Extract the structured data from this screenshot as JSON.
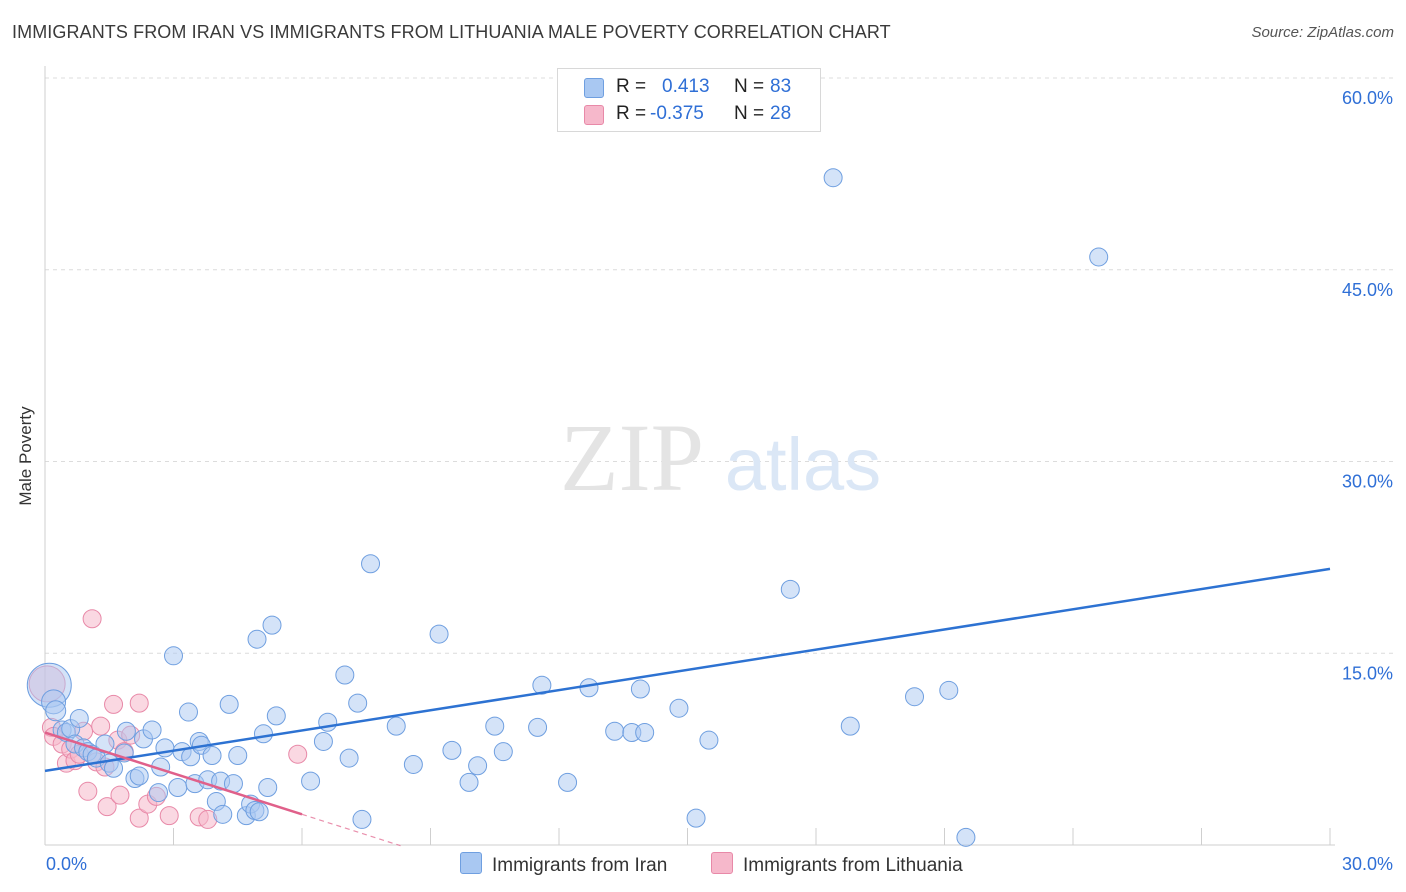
{
  "title": "IMMIGRANTS FROM IRAN VS IMMIGRANTS FROM LITHUANIA MALE POVERTY CORRELATION CHART",
  "source": "Source: ZipAtlas.com",
  "watermark": {
    "zip": "ZIP",
    "atlas": "atlas"
  },
  "legend": {
    "rows": [
      {
        "r_label": "R =",
        "r_value": "0.413",
        "n_label": "N =",
        "n_value": "83"
      },
      {
        "r_label": "R =",
        "r_value": "-0.375",
        "n_label": "N =",
        "n_value": "28"
      }
    ]
  },
  "bottom_legend": [
    "Immigrants from Iran",
    "Immigrants from Lithuania"
  ],
  "colors": {
    "iran_fill": "#a9c8f2",
    "iran_stroke": "#6f9fe0",
    "iran_line": "#2d72d2",
    "lith_fill": "#f6b8cb",
    "lith_stroke": "#e889a8",
    "lith_line": "#e0608a",
    "axis_label": "#2f6fd6",
    "grid": "#dcdcdc"
  },
  "chart_data": {
    "type": "scatter",
    "title": "IMMIGRANTS FROM IRAN VS IMMIGRANTS FROM LITHUANIA MALE POVERTY CORRELATION CHART",
    "xlabel": "",
    "ylabel": "Male Poverty",
    "xlim": [
      0,
      30
    ],
    "ylim": [
      0,
      60
    ],
    "x_tick_labels": [
      "0.0%",
      "30.0%"
    ],
    "y_ticks": [
      15,
      30,
      45,
      60
    ],
    "y_tick_labels": [
      "15.0%",
      "30.0%",
      "45.0%",
      "60.0%"
    ],
    "grid": true,
    "series": [
      {
        "name": "Immigrants from Iran",
        "R": 0.413,
        "N": 83,
        "trend": {
          "x0": 0,
          "y0": 5.8,
          "x1": 30,
          "y1": 21.6,
          "dashed_to": 30
        },
        "points": [
          [
            0.1,
            12.5,
            22
          ],
          [
            0.2,
            11.2,
            12
          ],
          [
            0.25,
            10.5,
            10
          ],
          [
            0.4,
            9.0,
            9
          ],
          [
            0.5,
            8.8,
            9
          ],
          [
            0.6,
            9.1,
            9
          ],
          [
            0.7,
            7.9,
            9
          ],
          [
            0.8,
            9.9,
            9
          ],
          [
            0.9,
            7.6,
            9
          ],
          [
            1.0,
            7.3,
            9
          ],
          [
            1.1,
            7.1,
            9
          ],
          [
            1.2,
            6.8,
            9
          ],
          [
            1.4,
            7.9,
            9
          ],
          [
            1.5,
            6.4,
            9
          ],
          [
            1.6,
            6.0,
            9
          ],
          [
            1.85,
            7.2,
            9
          ],
          [
            1.9,
            8.9,
            9
          ],
          [
            2.1,
            5.2,
            9
          ],
          [
            2.2,
            5.4,
            9
          ],
          [
            2.3,
            8.3,
            9
          ],
          [
            2.5,
            9.0,
            9
          ],
          [
            2.65,
            4.1,
            9
          ],
          [
            2.7,
            6.1,
            9
          ],
          [
            2.8,
            7.6,
            9
          ],
          [
            3.0,
            14.8,
            9
          ],
          [
            3.1,
            4.5,
            9
          ],
          [
            3.2,
            7.3,
            9
          ],
          [
            3.35,
            10.4,
            9
          ],
          [
            3.4,
            6.9,
            9
          ],
          [
            3.5,
            4.8,
            9
          ],
          [
            3.6,
            8.1,
            9
          ],
          [
            3.65,
            7.8,
            9
          ],
          [
            3.8,
            5.1,
            9
          ],
          [
            3.9,
            7.0,
            9
          ],
          [
            4.0,
            3.4,
            9
          ],
          [
            4.1,
            5.0,
            9
          ],
          [
            4.15,
            2.4,
            9
          ],
          [
            4.3,
            11.0,
            9
          ],
          [
            4.4,
            4.8,
            9
          ],
          [
            4.5,
            7.0,
            9
          ],
          [
            4.7,
            2.3,
            9
          ],
          [
            4.8,
            3.2,
            9
          ],
          [
            4.9,
            2.7,
            9
          ],
          [
            4.95,
            16.1,
            9
          ],
          [
            5.0,
            2.6,
            9
          ],
          [
            5.1,
            8.7,
            9
          ],
          [
            5.2,
            4.5,
            9
          ],
          [
            5.3,
            17.2,
            9
          ],
          [
            5.4,
            10.1,
            9
          ],
          [
            6.2,
            5.0,
            9
          ],
          [
            6.5,
            8.1,
            9
          ],
          [
            6.6,
            9.6,
            9
          ],
          [
            7.0,
            13.3,
            9
          ],
          [
            7.1,
            6.8,
            9
          ],
          [
            7.3,
            11.1,
            9
          ],
          [
            7.4,
            2.0,
            9
          ],
          [
            7.6,
            22.0,
            9
          ],
          [
            8.2,
            9.3,
            9
          ],
          [
            8.6,
            6.3,
            9
          ],
          [
            9.2,
            16.5,
            9
          ],
          [
            9.5,
            7.4,
            9
          ],
          [
            9.9,
            4.9,
            9
          ],
          [
            10.1,
            6.2,
            9
          ],
          [
            10.5,
            9.3,
            9
          ],
          [
            10.7,
            7.3,
            9
          ],
          [
            11.5,
            9.2,
            9
          ],
          [
            11.6,
            12.5,
            9
          ],
          [
            12.2,
            4.9,
            9
          ],
          [
            12.7,
            12.3,
            9
          ],
          [
            13.3,
            8.9,
            9
          ],
          [
            13.7,
            8.8,
            9
          ],
          [
            13.9,
            12.2,
            9
          ],
          [
            14.8,
            10.7,
            9
          ],
          [
            15.2,
            2.1,
            9
          ],
          [
            15.5,
            8.2,
            9
          ],
          [
            17.4,
            20.0,
            9
          ],
          [
            18.4,
            52.2,
            9
          ],
          [
            18.8,
            9.3,
            9
          ],
          [
            20.3,
            11.6,
            9
          ],
          [
            21.1,
            12.1,
            9
          ],
          [
            21.5,
            0.6,
            9
          ],
          [
            24.6,
            46.0,
            9
          ],
          [
            14.0,
            8.8,
            9
          ]
        ]
      },
      {
        "name": "Immigrants from Lithuania",
        "R": -0.375,
        "N": 28,
        "trend": {
          "x0": 0,
          "y0": 8.8,
          "x1": 6,
          "y1": 2.4,
          "dashed_to": 8.3
        },
        "points": [
          [
            0.05,
            12.6,
            18
          ],
          [
            0.15,
            9.2,
            9
          ],
          [
            0.2,
            8.5,
            9
          ],
          [
            0.4,
            7.9,
            9
          ],
          [
            0.5,
            6.4,
            9
          ],
          [
            0.6,
            7.5,
            9
          ],
          [
            0.7,
            6.6,
            9
          ],
          [
            0.8,
            7.1,
            9
          ],
          [
            0.9,
            8.9,
            9
          ],
          [
            1.0,
            4.2,
            9
          ],
          [
            1.1,
            17.7,
            9
          ],
          [
            1.2,
            6.5,
            9
          ],
          [
            1.3,
            9.3,
            9
          ],
          [
            1.4,
            6.1,
            9
          ],
          [
            1.45,
            3.0,
            9
          ],
          [
            1.6,
            11.0,
            9
          ],
          [
            1.7,
            8.2,
            9
          ],
          [
            1.75,
            3.9,
            9
          ],
          [
            1.85,
            7.3,
            9
          ],
          [
            2.0,
            8.6,
            9
          ],
          [
            2.2,
            2.1,
            9
          ],
          [
            2.2,
            11.1,
            9
          ],
          [
            2.4,
            3.2,
            9
          ],
          [
            2.6,
            3.8,
            9
          ],
          [
            2.9,
            2.3,
            9
          ],
          [
            3.6,
            2.2,
            9
          ],
          [
            3.8,
            2.0,
            9
          ],
          [
            5.9,
            7.1,
            9
          ]
        ]
      }
    ]
  }
}
